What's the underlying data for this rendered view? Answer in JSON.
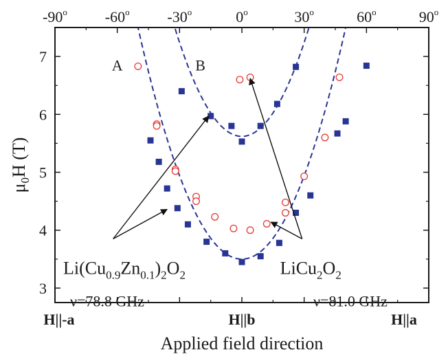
{
  "chart_data": {
    "type": "scatter",
    "xlabel": "Applied field direction",
    "ylabel": {
      "main": "μ",
      "sub": "0",
      "rest": "H (T)"
    },
    "xlim": [
      -90,
      90
    ],
    "ylim": [
      2.75,
      7.5
    ],
    "top_ticks": [
      {
        "value": -90,
        "label": "-90"
      },
      {
        "value": -60,
        "label": "-60"
      },
      {
        "value": -30,
        "label": "-30"
      },
      {
        "value": 0,
        "label": "0"
      },
      {
        "value": 30,
        "label": "30"
      },
      {
        "value": 60,
        "label": "60"
      },
      {
        "value": 90,
        "label": "90"
      }
    ],
    "degree_symbol": "o",
    "bottom_ticks": [
      {
        "value": -90,
        "label": "H||-a"
      },
      {
        "value": 0,
        "label": "H||b"
      },
      {
        "value": 90,
        "label": "H||a"
      }
    ],
    "y_ticks": [
      3,
      4,
      5,
      6,
      7
    ],
    "series": [
      {
        "marker": "filled-square",
        "color": "#283593",
        "points": [
          [
            -44,
            5.55
          ],
          [
            -40,
            5.18
          ],
          [
            -36,
            4.72
          ],
          [
            -31,
            4.38
          ],
          [
            -26,
            4.1
          ],
          [
            -17,
            3.8
          ],
          [
            -8,
            3.6
          ],
          [
            0,
            3.45
          ],
          [
            9,
            3.55
          ],
          [
            18,
            3.78
          ],
          [
            26,
            4.3
          ],
          [
            33,
            4.6
          ],
          [
            -15,
            5.97
          ],
          [
            -5,
            5.8
          ],
          [
            0,
            5.53
          ],
          [
            9,
            5.8
          ],
          [
            -29,
            6.4
          ],
          [
            17,
            6.18
          ],
          [
            26,
            6.82
          ],
          [
            46,
            5.67
          ],
          [
            50,
            5.88
          ],
          [
            60,
            6.84
          ]
        ]
      },
      {
        "marker": "open-circle",
        "color": "#e53935",
        "points": [
          [
            -50,
            6.83
          ],
          [
            -41,
            5.83
          ],
          [
            -41,
            5.8
          ],
          [
            -32,
            5.05
          ],
          [
            -32,
            5.02
          ],
          [
            -22,
            4.58
          ],
          [
            -22,
            4.5
          ],
          [
            -13,
            4.23
          ],
          [
            -4,
            4.03
          ],
          [
            4,
            4.0
          ],
          [
            12,
            4.11
          ],
          [
            21,
            4.48
          ],
          [
            21,
            4.3
          ],
          [
            30,
            4.93
          ],
          [
            40,
            5.6
          ],
          [
            47,
            6.64
          ],
          [
            -1,
            6.6
          ],
          [
            4,
            6.64
          ]
        ]
      }
    ],
    "fit_curves": [
      {
        "name": "A",
        "center": 0,
        "min": 3.5,
        "coef": 0.0016,
        "color": "#283593"
      },
      {
        "name": "B",
        "center": 0,
        "min": 5.62,
        "coef": 0.0018,
        "color": "#283593"
      }
    ],
    "curve_labels": [
      {
        "text": "A",
        "x": -60,
        "y": 6.85
      },
      {
        "text": "B",
        "x": -20,
        "y": 6.85
      }
    ],
    "annotations": [
      {
        "id": "liznco",
        "formula": [
          {
            "t": "Li(Cu",
            "s": ""
          },
          {
            "t": "0.9",
            "s": "sub"
          },
          {
            "t": "Zn",
            "s": ""
          },
          {
            "t": "0.1",
            "s": "sub"
          },
          {
            "t": ")",
            "s": ""
          },
          {
            "t": "2",
            "s": "sub"
          },
          {
            "t": "O",
            "s": ""
          },
          {
            "t": "2",
            "s": "sub"
          }
        ],
        "freq": "ν=78.8 GHz",
        "anchor": [
          -62,
          3.35
        ],
        "arrow_from": [
          -62,
          3.85
        ],
        "arrow_to": [
          [
            -16,
            5.97
          ],
          [
            -36,
            4.36
          ]
        ]
      },
      {
        "id": "licuo",
        "formula": [
          {
            "t": "LiCu",
            "s": ""
          },
          {
            "t": "2",
            "s": "sub"
          },
          {
            "t": "O",
            "s": ""
          },
          {
            "t": "2",
            "s": "sub"
          }
        ],
        "freq": "ν=81.0 GHz",
        "anchor": [
          27,
          3.35
        ],
        "arrow_from": [
          29,
          3.85
        ],
        "arrow_to": [
          [
            4,
            6.62
          ],
          [
            14,
            4.14
          ]
        ]
      }
    ]
  }
}
